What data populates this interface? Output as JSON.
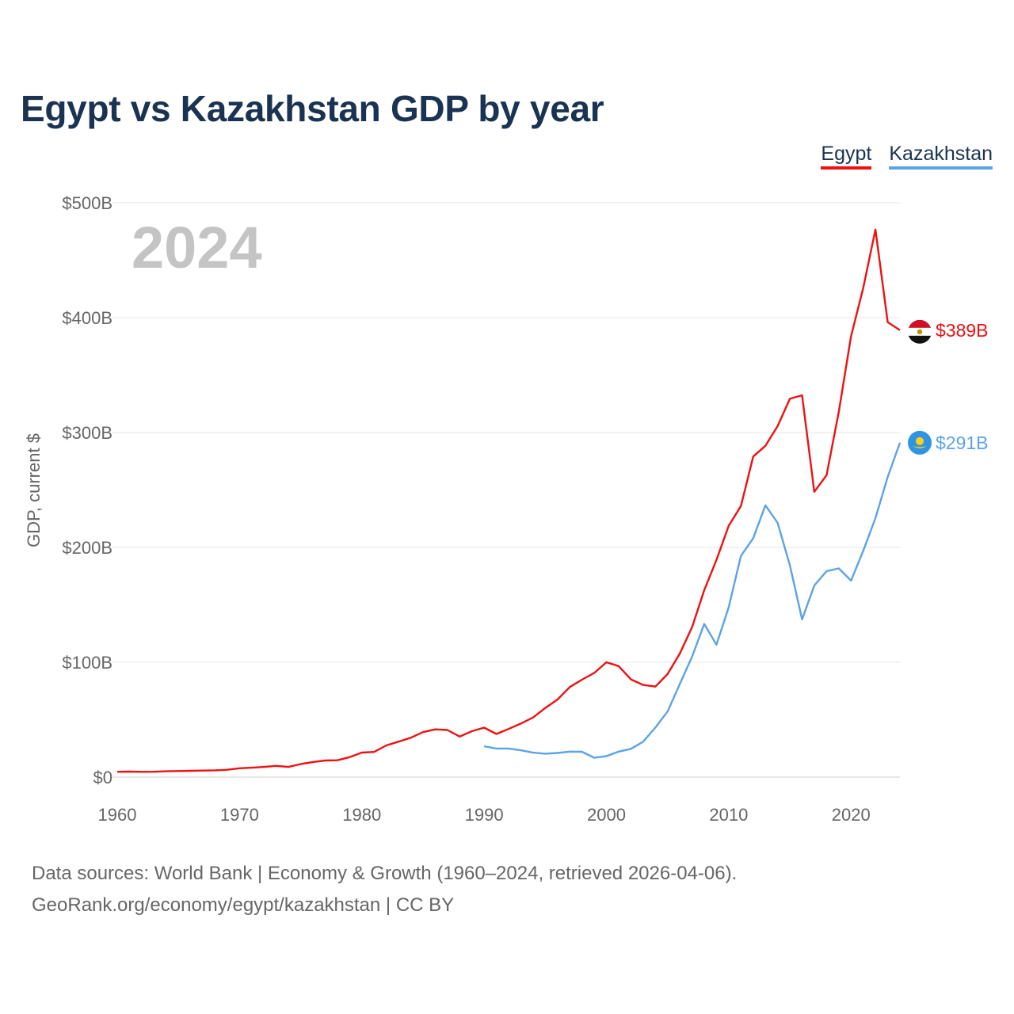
{
  "chart_data": {
    "type": "line",
    "title": "Egypt vs Kazakhstan GDP by year",
    "year_label": "2024",
    "ylabel": "GDP, current $",
    "xlabel": "",
    "xlim": [
      1960,
      2024
    ],
    "ylim": [
      0,
      500
    ],
    "x_ticks": [
      {
        "value": 1960,
        "label": "1960"
      },
      {
        "value": 1970,
        "label": "1970"
      },
      {
        "value": 1980,
        "label": "1980"
      },
      {
        "value": 1990,
        "label": "1990"
      },
      {
        "value": 2000,
        "label": "2000"
      },
      {
        "value": 2010,
        "label": "2010"
      },
      {
        "value": 2020,
        "label": "2020"
      }
    ],
    "y_ticks": [
      {
        "value": 0,
        "label": "$0"
      },
      {
        "value": 100,
        "label": "$100B"
      },
      {
        "value": 200,
        "label": "$200B"
      },
      {
        "value": 300,
        "label": "$300B"
      },
      {
        "value": 400,
        "label": "$400B"
      },
      {
        "value": 500,
        "label": "$500B"
      }
    ],
    "grid": true,
    "legend_position": "top-right",
    "series": [
      {
        "name": "Egypt",
        "color": "#ee1111",
        "end_label": "$389B",
        "flag": "egypt-flag",
        "start_year": 1960,
        "values": [
          4.6,
          4.8,
          4.6,
          4.7,
          5.1,
          5.3,
          5.5,
          5.7,
          5.9,
          6.4,
          7.7,
          8.2,
          8.9,
          9.8,
          8.9,
          11.4,
          13.2,
          14.5,
          14.7,
          17.4,
          21.4,
          21.9,
          27.6,
          30.9,
          34.3,
          39.2,
          41.6,
          41.0,
          35.3,
          40.0,
          43.1,
          37.6,
          41.9,
          46.6,
          51.9,
          60.2,
          67.6,
          78.4,
          84.8,
          90.7,
          100.0,
          96.7,
          85.1,
          80.3,
          78.8,
          89.7,
          107.5,
          130.5,
          162.8,
          189.1,
          218.9,
          236.0,
          279.1,
          288.4,
          305.6,
          329.4,
          332.4,
          248.4,
          262.9,
          317.9,
          383.8,
          425.9,
          476.7,
          396.0,
          389.1
        ]
      },
      {
        "name": "Kazakhstan",
        "color": "#5ba3e6",
        "end_label": "$291B",
        "flag": "kazakhstan-flag",
        "start_year": 1990,
        "values": [
          26.9,
          24.9,
          24.9,
          23.4,
          21.3,
          20.4,
          21.0,
          22.2,
          22.1,
          16.9,
          18.3,
          22.2,
          24.6,
          30.8,
          43.2,
          57.1,
          81.0,
          104.8,
          133.4,
          115.3,
          148.0,
          192.6,
          208.0,
          236.6,
          221.4,
          184.4,
          137.3,
          166.8,
          179.3,
          181.7,
          171.1,
          197.1,
          225.5,
          261.4,
          291.1
        ]
      }
    ]
  },
  "footer": {
    "line1": "Data sources: World Bank | Economy & Growth (1960–2024, retrieved 2026-04-06).",
    "line2": "GeoRank.org/economy/egypt/kazakhstan | CC BY"
  }
}
